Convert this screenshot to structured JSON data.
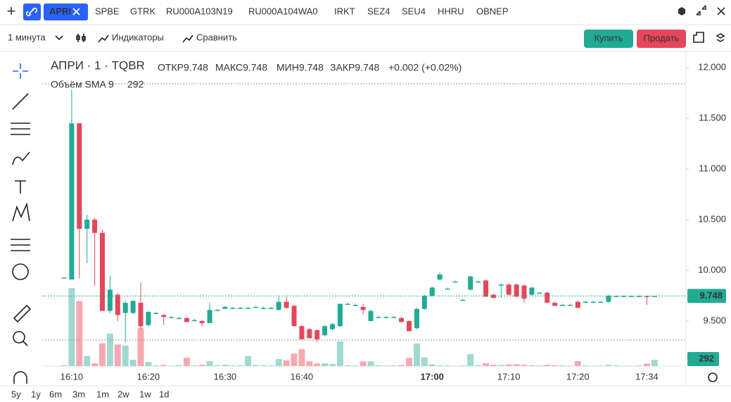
{
  "toolbar": {
    "tabs": [
      "APRI",
      "SPBE",
      "GTRK",
      "RU000A103N19",
      "RU000A104WA0",
      "IRKT",
      "SEZ4",
      "SEU4",
      "HHRU",
      "OBNEP"
    ],
    "interval": "1 минута",
    "indicators": "Индикаторы",
    "compare": "Сравнить",
    "buy": "Купить",
    "sell": "Продать"
  },
  "legend": {
    "symbol": "АПРИ · 1 · TQBR",
    "open_label": "ОТКР",
    "high_label": "МАКС",
    "low_label": "МИН",
    "close_label": "ЗАКР",
    "change": "+0.002 (+0.02%)",
    "volume_label": "Объём SMA 9"
  },
  "ranges": [
    "5y",
    "1y",
    "6m",
    "3m",
    "1m",
    "2w",
    "1w",
    "1d"
  ],
  "chart_data": {
    "type": "candlestick",
    "categories": [
      null,
      "16:10",
      null,
      null,
      null,
      null,
      null,
      null,
      null,
      null,
      null,
      "16:20",
      null,
      null,
      null,
      null,
      null,
      null,
      null,
      null,
      null,
      "16:30",
      null,
      null,
      null,
      null,
      null,
      null,
      null,
      null,
      null,
      "16:40",
      null,
      null,
      null,
      null,
      null,
      null,
      null,
      null,
      null,
      null,
      null,
      null,
      null,
      null,
      null,
      null,
      "17:00",
      null,
      null,
      null,
      null,
      null,
      null,
      null,
      null,
      null,
      "17:10",
      null,
      null,
      null,
      null,
      null,
      null,
      null,
      null,
      "17:20",
      null,
      null,
      null,
      null,
      null,
      null,
      null,
      null,
      "17:34",
      null
    ],
    "open": [
      9.93,
      9.91,
      11.45,
      10.41,
      10.5,
      10.37,
      9.6,
      9.76,
      9.58,
      9.58,
      9.68,
      9.46,
      9.58,
      9.56,
      9.54,
      9.53,
      9.53,
      9.51,
      9.5,
      9.48,
      9.61,
      9.62,
      9.63,
      9.63,
      9.63,
      9.64,
      9.63,
      9.63,
      9.61,
      9.69,
      9.65,
      9.45,
      9.42,
      9.41,
      9.36,
      9.42,
      9.45,
      9.67,
      9.66,
      9.64,
      9.5,
      9.54,
      9.54,
      9.54,
      9.53,
      9.5,
      9.43,
      9.62,
      9.75,
      9.91,
      9.82,
      9.89,
      9.71,
      9.81,
      9.89,
      9.9,
      9.76,
      9.86,
      9.86,
      9.86,
      9.85,
      9.76,
      9.78,
      9.78,
      9.68,
      9.66,
      9.66,
      9.69,
      9.69,
      9.69,
      9.69,
      9.69,
      9.748,
      9.748,
      9.748,
      9.748,
      9.748,
      9.748
    ],
    "high": [
      9.93,
      11.78,
      11.45,
      10.55,
      10.52,
      10.4,
      9.95,
      9.78,
      9.7,
      9.7,
      9.88,
      9.6,
      9.59,
      9.57,
      9.55,
      9.54,
      9.54,
      9.52,
      9.51,
      9.68,
      9.62,
      9.65,
      9.64,
      9.64,
      9.64,
      9.65,
      9.64,
      9.64,
      9.74,
      9.74,
      9.66,
      9.46,
      9.43,
      9.42,
      9.46,
      9.48,
      9.67,
      9.68,
      9.67,
      9.67,
      9.61,
      9.55,
      9.55,
      9.55,
      9.54,
      9.51,
      9.63,
      9.76,
      9.84,
      9.98,
      9.83,
      9.9,
      9.72,
      9.95,
      9.9,
      9.91,
      9.77,
      9.87,
      9.87,
      9.87,
      9.86,
      9.84,
      9.79,
      9.79,
      9.69,
      9.67,
      9.67,
      9.7,
      9.7,
      9.7,
      9.7,
      9.76,
      9.75,
      9.75,
      9.75,
      9.75,
      9.75,
      9.748
    ],
    "low": [
      9.93,
      9.91,
      9.92,
      10.07,
      9.85,
      9.6,
      9.58,
      9.5,
      9.29,
      9.57,
      9.42,
      9.45,
      9.57,
      9.46,
      9.53,
      9.52,
      9.49,
      9.5,
      9.45,
      9.48,
      9.6,
      9.62,
      9.62,
      9.62,
      9.62,
      9.63,
      9.62,
      9.62,
      9.6,
      9.62,
      9.45,
      9.32,
      9.33,
      9.29,
      9.35,
      9.41,
      9.44,
      9.66,
      9.65,
      9.56,
      9.5,
      9.53,
      9.53,
      9.53,
      9.49,
      9.4,
      9.42,
      9.61,
      9.74,
      9.9,
      9.81,
      9.88,
      9.7,
      9.8,
      9.88,
      9.74,
      9.72,
      9.73,
      9.75,
      9.74,
      9.68,
      9.75,
      9.77,
      9.68,
      9.65,
      9.65,
      9.65,
      9.63,
      9.68,
      9.68,
      9.68,
      9.68,
      9.74,
      9.74,
      9.74,
      9.74,
      9.66,
      9.748
    ],
    "close": [
      9.93,
      11.45,
      10.41,
      10.5,
      10.37,
      9.6,
      9.81,
      9.56,
      9.68,
      9.7,
      9.45,
      9.59,
      9.58,
      9.54,
      9.54,
      9.53,
      9.49,
      9.51,
      9.48,
      9.61,
      9.61,
      9.64,
      9.63,
      9.63,
      9.63,
      9.64,
      9.63,
      9.63,
      9.69,
      9.63,
      9.45,
      9.32,
      9.33,
      9.32,
      9.45,
      9.47,
      9.67,
      9.67,
      9.66,
      9.61,
      9.6,
      9.54,
      9.54,
      9.54,
      9.49,
      9.4,
      9.62,
      9.75,
      9.83,
      9.96,
      9.82,
      9.89,
      9.71,
      9.94,
      9.89,
      9.74,
      9.73,
      9.86,
      9.76,
      9.74,
      9.72,
      9.83,
      9.78,
      9.68,
      9.65,
      9.66,
      9.66,
      9.63,
      9.69,
      9.69,
      9.69,
      9.75,
      9.748,
      9.748,
      9.748,
      9.748,
      9.74,
      9.748
    ],
    "volume": [
      40,
      3600,
      3000,
      460,
      130,
      1050,
      1500,
      1000,
      950,
      290,
      1750,
      190,
      30,
      60,
      20,
      40,
      390,
      30,
      60,
      230,
      40,
      60,
      30,
      40,
      460,
      50,
      40,
      30,
      330,
      260,
      580,
      780,
      220,
      120,
      130,
      100,
      1140,
      40,
      30,
      220,
      220,
      40,
      30,
      30,
      50,
      380,
      1040,
      400,
      80,
      40,
      30,
      20,
      30,
      550,
      40,
      130,
      60,
      50,
      80,
      90,
      60,
      40,
      30,
      60,
      40,
      30,
      20,
      230,
      30,
      20,
      20,
      60,
      30,
      20,
      20,
      30,
      120,
      292
    ],
    "ylim": [
      9.056,
      12.111
    ],
    "volume_lim": [
      0,
      3900
    ],
    "yticks": [
      {
        "value": 12,
        "label": "12.000"
      },
      {
        "value": 11.5,
        "label": "11.500"
      },
      {
        "value": 11,
        "label": "11.000"
      },
      {
        "value": 10.5,
        "label": "10.500"
      },
      {
        "value": 10,
        "label": "10.000"
      },
      {
        "value": 9.5,
        "label": "9.500"
      }
    ],
    "grid": false,
    "up_color": "#22ab94",
    "down_color": "#e5475a",
    "up_volume_color": "#9fd9cf",
    "down_volume_color": "#f7a9b1"
  }
}
